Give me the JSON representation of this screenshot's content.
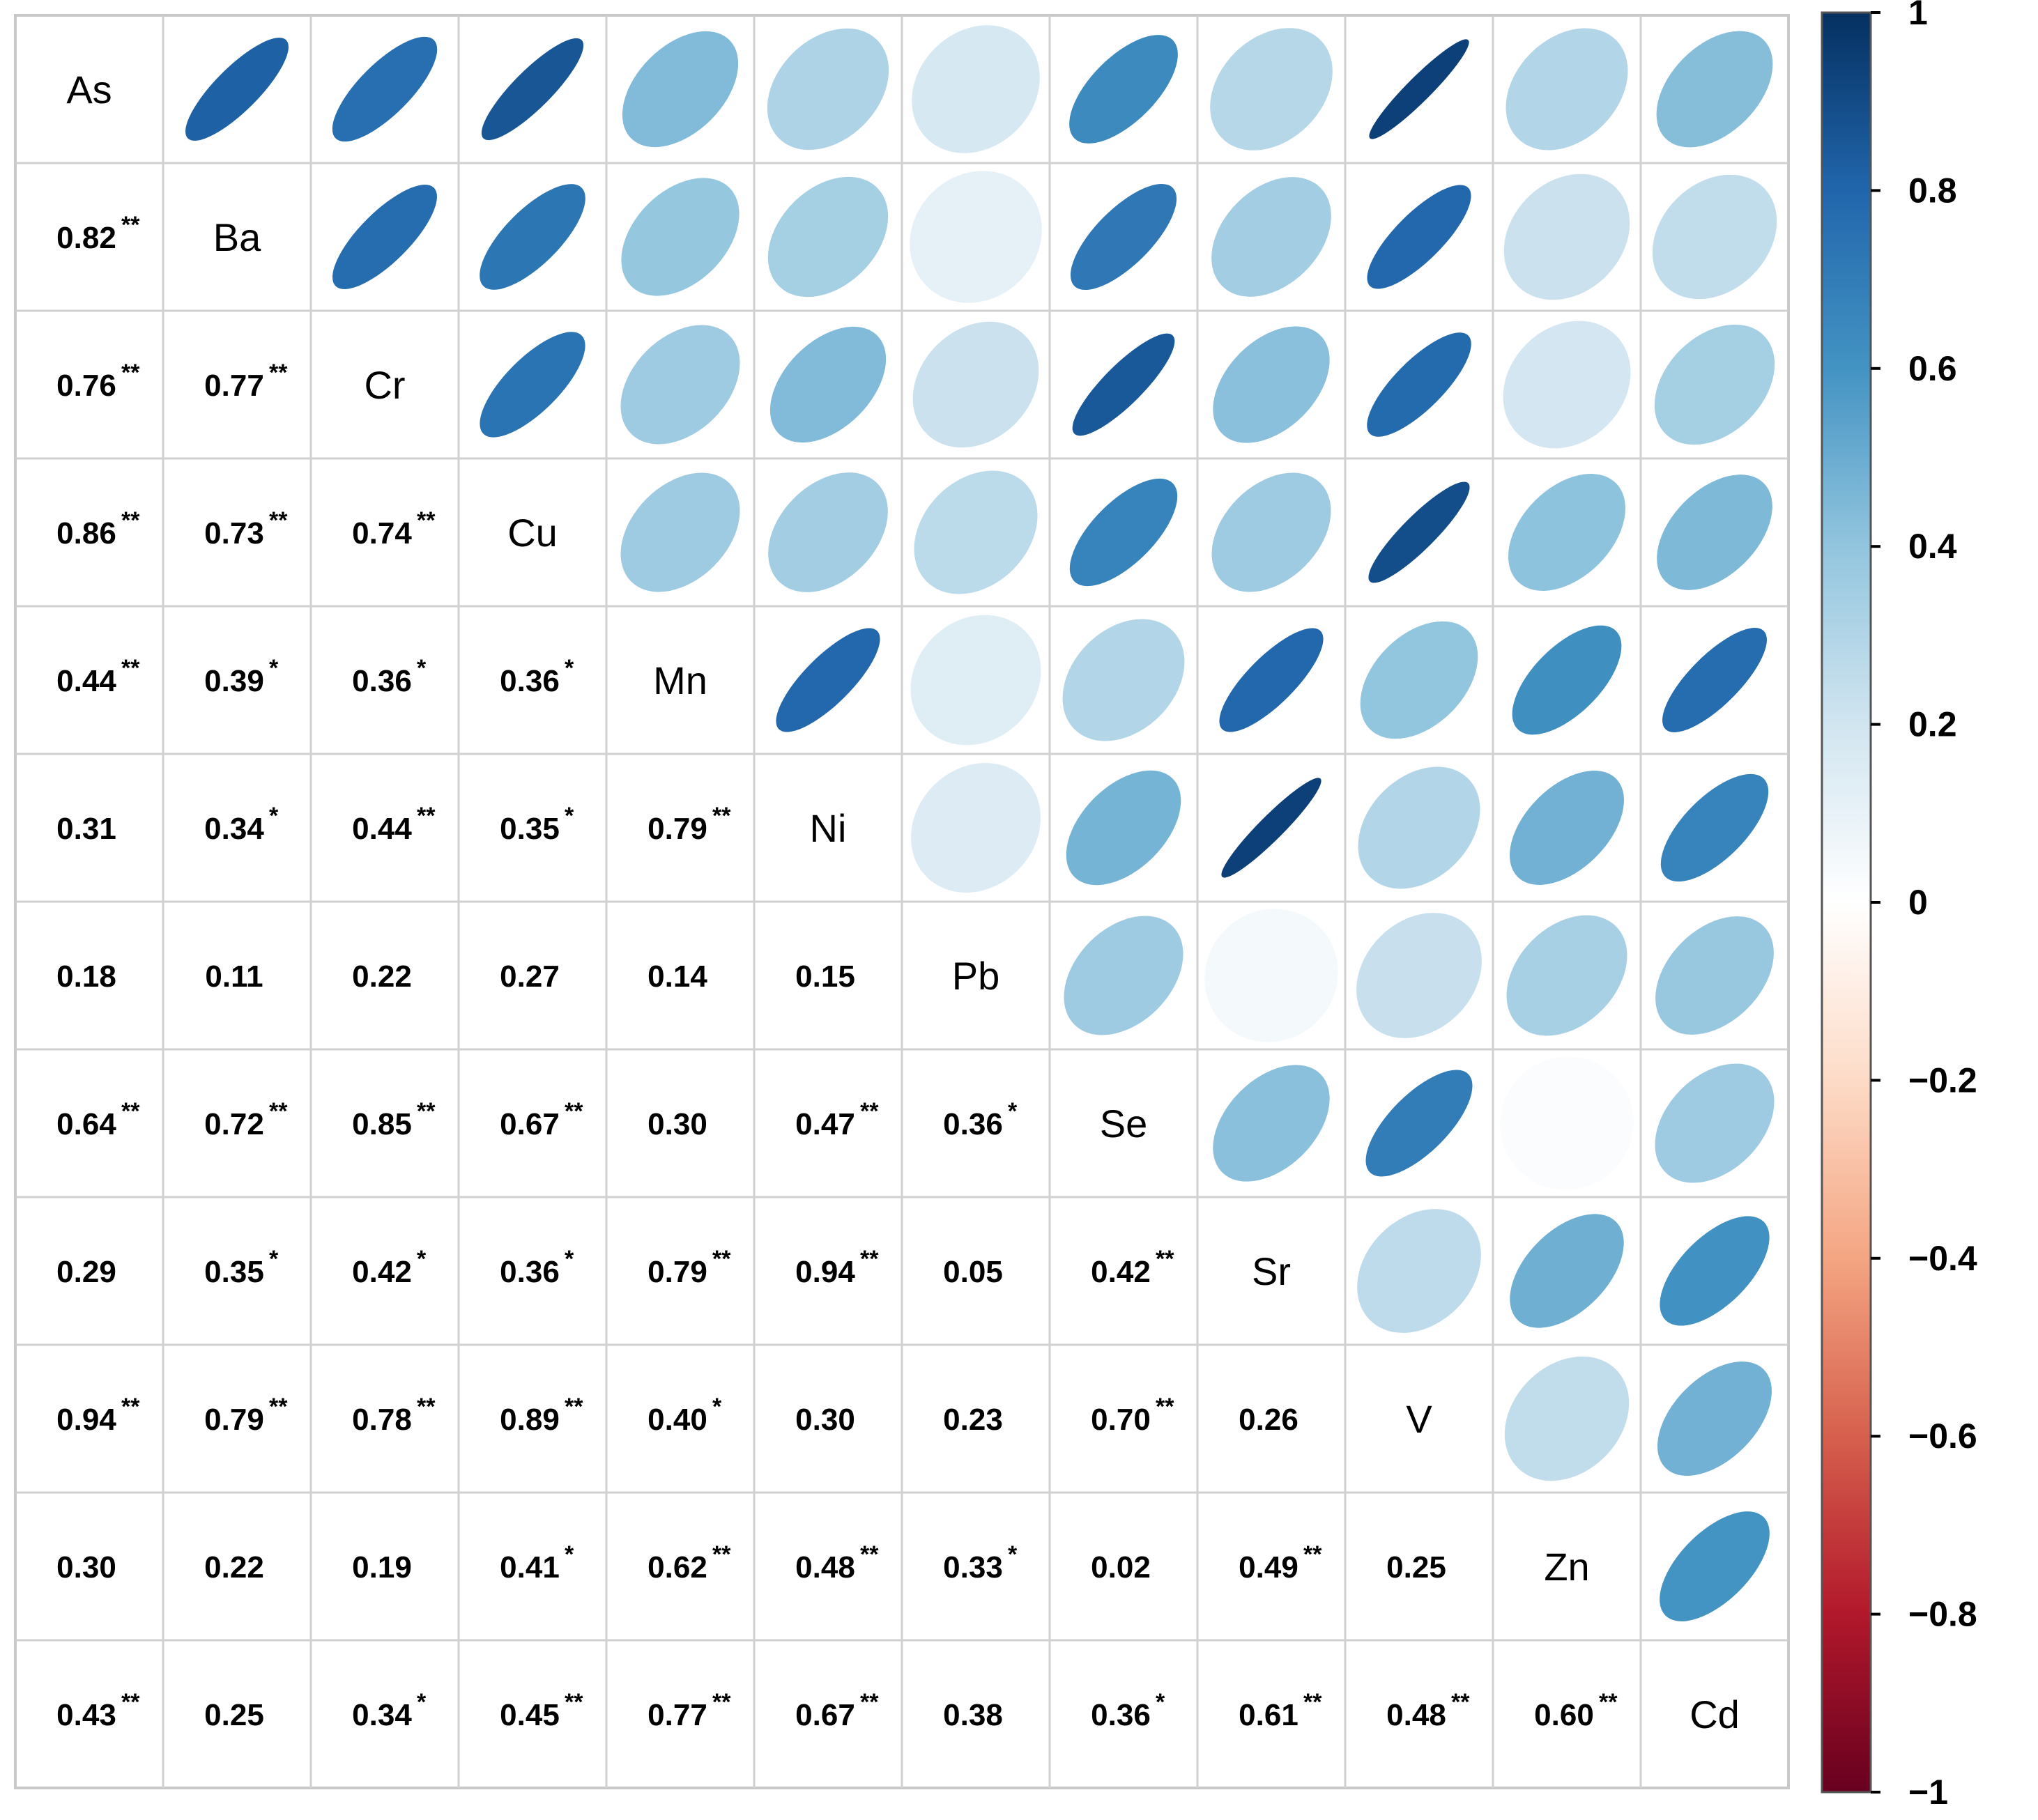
{
  "chart_data": {
    "type": "heatmap",
    "subtype": "correlation-matrix",
    "variables": [
      "As",
      "Ba",
      "Cr",
      "Cu",
      "Mn",
      "Ni",
      "Pb",
      "Se",
      "Sr",
      "V",
      "Zn",
      "Cd"
    ],
    "lower_triangle": "numbers with significance stars",
    "upper_triangle": "ellipses",
    "correlations": [
      [
        1,
        0.82,
        0.76,
        0.86,
        0.44,
        0.31,
        0.18,
        0.64,
        0.29,
        0.94,
        0.3,
        0.43
      ],
      [
        0.82,
        1,
        0.77,
        0.73,
        0.39,
        0.34,
        0.11,
        0.72,
        0.35,
        0.79,
        0.22,
        0.25
      ],
      [
        0.76,
        0.77,
        1,
        0.74,
        0.36,
        0.44,
        0.22,
        0.85,
        0.42,
        0.78,
        0.19,
        0.34
      ],
      [
        0.86,
        0.73,
        0.74,
        1,
        0.36,
        0.35,
        0.27,
        0.67,
        0.36,
        0.89,
        0.41,
        0.45
      ],
      [
        0.44,
        0.39,
        0.36,
        0.36,
        1,
        0.79,
        0.14,
        0.3,
        0.79,
        0.4,
        0.62,
        0.77
      ],
      [
        0.31,
        0.34,
        0.44,
        0.35,
        0.79,
        1,
        0.15,
        0.47,
        0.94,
        0.3,
        0.48,
        0.67
      ],
      [
        0.18,
        0.11,
        0.22,
        0.27,
        0.14,
        0.15,
        1,
        0.36,
        0.05,
        0.23,
        0.33,
        0.38
      ],
      [
        0.64,
        0.72,
        0.85,
        0.67,
        0.3,
        0.47,
        0.36,
        1,
        0.42,
        0.7,
        0.02,
        0.36
      ],
      [
        0.29,
        0.35,
        0.42,
        0.36,
        0.79,
        0.94,
        0.05,
        0.42,
        1,
        0.26,
        0.49,
        0.61
      ],
      [
        0.94,
        0.79,
        0.78,
        0.89,
        0.4,
        0.3,
        0.23,
        0.7,
        0.26,
        1,
        0.25,
        0.48
      ],
      [
        0.3,
        0.22,
        0.19,
        0.41,
        0.62,
        0.48,
        0.33,
        0.02,
        0.49,
        0.25,
        1,
        0.6
      ],
      [
        0.43,
        0.25,
        0.34,
        0.45,
        0.77,
        0.67,
        0.38,
        0.36,
        0.61,
        0.48,
        0.6,
        1
      ]
    ],
    "lower_labels": [
      [],
      [
        {
          "v": "0.82",
          "s": "**"
        }
      ],
      [
        {
          "v": "0.76",
          "s": "**"
        },
        {
          "v": "0.77",
          "s": "**"
        }
      ],
      [
        {
          "v": "0.86",
          "s": "**"
        },
        {
          "v": "0.73",
          "s": "**"
        },
        {
          "v": "0.74",
          "s": "**"
        }
      ],
      [
        {
          "v": "0.44",
          "s": "**"
        },
        {
          "v": "0.39",
          "s": "*"
        },
        {
          "v": "0.36",
          "s": "*"
        },
        {
          "v": "0.36",
          "s": "*"
        }
      ],
      [
        {
          "v": "0.31",
          "s": ""
        },
        {
          "v": "0.34",
          "s": "*"
        },
        {
          "v": "0.44",
          "s": "**"
        },
        {
          "v": "0.35",
          "s": "*"
        },
        {
          "v": "0.79",
          "s": "**"
        }
      ],
      [
        {
          "v": "0.18",
          "s": ""
        },
        {
          "v": "0.11",
          "s": ""
        },
        {
          "v": "0.22",
          "s": ""
        },
        {
          "v": "0.27",
          "s": ""
        },
        {
          "v": "0.14",
          "s": ""
        },
        {
          "v": "0.15",
          "s": ""
        }
      ],
      [
        {
          "v": "0.64",
          "s": "**"
        },
        {
          "v": "0.72",
          "s": "**"
        },
        {
          "v": "0.85",
          "s": "**"
        },
        {
          "v": "0.67",
          "s": "**"
        },
        {
          "v": "0.30",
          "s": ""
        },
        {
          "v": "0.47",
          "s": "**"
        },
        {
          "v": "0.36",
          "s": "*"
        }
      ],
      [
        {
          "v": "0.29",
          "s": ""
        },
        {
          "v": "0.35",
          "s": "*"
        },
        {
          "v": "0.42",
          "s": "*"
        },
        {
          "v": "0.36",
          "s": "*"
        },
        {
          "v": "0.79",
          "s": "**"
        },
        {
          "v": "0.94",
          "s": "**"
        },
        {
          "v": "0.05",
          "s": ""
        },
        {
          "v": "0.42",
          "s": "**"
        }
      ],
      [
        {
          "v": "0.94",
          "s": "**"
        },
        {
          "v": "0.79",
          "s": "**"
        },
        {
          "v": "0.78",
          "s": "**"
        },
        {
          "v": "0.89",
          "s": "**"
        },
        {
          "v": "0.40",
          "s": "*"
        },
        {
          "v": "0.30",
          "s": ""
        },
        {
          "v": "0.23",
          "s": ""
        },
        {
          "v": "0.70",
          "s": "**"
        },
        {
          "v": "0.26",
          "s": ""
        }
      ],
      [
        {
          "v": "0.30",
          "s": ""
        },
        {
          "v": "0.22",
          "s": ""
        },
        {
          "v": "0.19",
          "s": ""
        },
        {
          "v": "0.41",
          "s": "*"
        },
        {
          "v": "0.62",
          "s": "**"
        },
        {
          "v": "0.48",
          "s": "**"
        },
        {
          "v": "0.33",
          "s": "*"
        },
        {
          "v": "0.02",
          "s": ""
        },
        {
          "v": "0.49",
          "s": "**"
        },
        {
          "v": "0.25",
          "s": ""
        }
      ],
      [
        {
          "v": "0.43",
          "s": "**"
        },
        {
          "v": "0.25",
          "s": ""
        },
        {
          "v": "0.34",
          "s": "*"
        },
        {
          "v": "0.45",
          "s": "**"
        },
        {
          "v": "0.77",
          "s": "**"
        },
        {
          "v": "0.67",
          "s": "**"
        },
        {
          "v": "0.38",
          "s": ""
        },
        {
          "v": "0.36",
          "s": "*"
        },
        {
          "v": "0.61",
          "s": "**"
        },
        {
          "v": "0.48",
          "s": "**"
        },
        {
          "v": "0.60",
          "s": "**"
        }
      ]
    ],
    "colorbar": {
      "range": [
        -1,
        1
      ],
      "ticks": [
        1,
        0.8,
        0.6,
        0.4,
        0.2,
        0,
        -0.2,
        -0.4,
        -0.6,
        -0.8,
        -1
      ],
      "tick_labels": [
        "1",
        "0.8",
        "0.6",
        "0.4",
        "0.2",
        "0",
        "−0.2",
        "−0.4",
        "−0.6",
        "−0.8",
        "−1"
      ],
      "placement": "right"
    },
    "colors": {
      "neg_strong": "#67001f",
      "neg_mid": "#d6604d",
      "neg_light": "#f4a582",
      "neg_pale": "#fddbc7",
      "zero": "#ffffff",
      "pos_pale": "#d1e5f0",
      "pos_light": "#92c5de",
      "pos_mid": "#4393c3",
      "pos_strong": "#2166ac",
      "pos_darkest": "#053061"
    },
    "title": "",
    "xlabel": "",
    "ylabel": ""
  }
}
